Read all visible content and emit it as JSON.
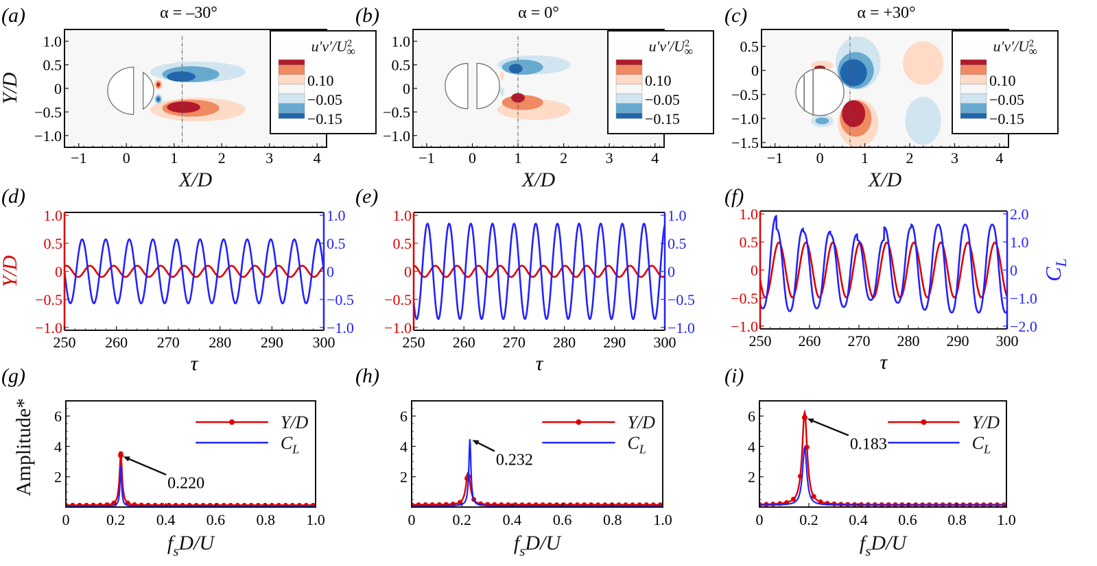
{
  "figure": {
    "description": "Flow field Reynolds stress contours, time histories, and amplitude spectra for three attack angles"
  },
  "chart_data": [
    {
      "id": "a",
      "panel_label": "(a)",
      "type": "heatmap",
      "title": "α = –30°",
      "xlabel": "X/D",
      "ylabel": "Y/D",
      "xlim": [
        -1.3,
        4.2
      ],
      "ylim": [
        -1.25,
        1.25
      ],
      "xticks": [
        -1,
        0,
        1,
        2,
        3,
        4
      ],
      "xtick_labels": [
        "−1",
        "0",
        "1",
        "2",
        "3",
        "4"
      ],
      "yticks": [
        1.0,
        0.5,
        0,
        -0.5,
        -1.0
      ],
      "ytick_labels": [
        "1.0",
        "0.5",
        "0",
        "−0.5",
        "−1.0"
      ],
      "probe_line_x": 1.17,
      "colorbar": {
        "title": "u′v′/U∞²",
        "labels": [
          "0.10",
          "−0.05",
          "−0.15"
        ],
        "levels": [
          "#b2182b",
          "#ef8a62",
          "#fddbc7",
          "#f7f7f7",
          "#d1e5f0",
          "#67a9cf",
          "#2166ac"
        ]
      },
      "geometry": {
        "type": "semicircle+arc",
        "description": "front semicircle with downstream arc splitter"
      },
      "blobs": [
        {
          "cx": 1.5,
          "cy": 0.35,
          "rx": 1.0,
          "ry": 0.22,
          "level": -1,
          "sign": "neg"
        },
        {
          "cx": 1.35,
          "cy": 0.3,
          "rx": 0.6,
          "ry": 0.17,
          "level": -2,
          "sign": "neg"
        },
        {
          "cx": 1.15,
          "cy": 0.25,
          "rx": 0.3,
          "ry": 0.11,
          "level": -3,
          "sign": "neg"
        },
        {
          "cx": 1.5,
          "cy": -0.45,
          "rx": 1.0,
          "ry": 0.25,
          "level": 1,
          "sign": "pos"
        },
        {
          "cx": 1.35,
          "cy": -0.42,
          "rx": 0.6,
          "ry": 0.18,
          "level": 2,
          "sign": "pos"
        },
        {
          "cx": 1.2,
          "cy": -0.4,
          "rx": 0.35,
          "ry": 0.12,
          "level": 3,
          "sign": "pos"
        },
        {
          "cx": 0.67,
          "cy": 0.08,
          "rx": 0.09,
          "ry": 0.11,
          "level": 1,
          "sign": "pos"
        },
        {
          "cx": 0.67,
          "cy": 0.08,
          "rx": 0.06,
          "ry": 0.08,
          "level": 2,
          "sign": "pos"
        },
        {
          "cx": 0.67,
          "cy": 0.08,
          "rx": 0.03,
          "ry": 0.04,
          "level": 3,
          "sign": "pos"
        },
        {
          "cx": 0.67,
          "cy": -0.23,
          "rx": 0.09,
          "ry": 0.11,
          "level": -1,
          "sign": "neg"
        },
        {
          "cx": 0.67,
          "cy": -0.23,
          "rx": 0.06,
          "ry": 0.08,
          "level": -2,
          "sign": "neg"
        },
        {
          "cx": 0.67,
          "cy": -0.23,
          "rx": 0.03,
          "ry": 0.04,
          "level": -3,
          "sign": "neg"
        }
      ]
    },
    {
      "id": "b",
      "panel_label": "(b)",
      "type": "heatmap",
      "title": "α = 0°",
      "xlabel": "X/D",
      "ylabel": "",
      "xlim": [
        -1.3,
        4.2
      ],
      "ylim": [
        -1.25,
        1.25
      ],
      "xticks": [
        -1,
        0,
        1,
        2,
        3,
        4
      ],
      "xtick_labels": [
        "−1",
        "0",
        "1",
        "2",
        "3",
        "4"
      ],
      "yticks": [
        1.0,
        0.5,
        0,
        -0.5,
        -1.0
      ],
      "ytick_labels": [
        "1.0",
        "0.5",
        "0",
        "−0.5",
        "−1.0"
      ],
      "probe_line_x": 1.0,
      "colorbar": {
        "title": "u′v′/U∞²",
        "labels": [
          "0.10",
          "−0.05",
          "−0.15"
        ],
        "levels": [
          "#b2182b",
          "#ef8a62",
          "#fddbc7",
          "#f7f7f7",
          "#d1e5f0",
          "#67a9cf",
          "#2166ac"
        ]
      },
      "geometry": {
        "type": "split-circle",
        "description": "two facing semicircles with gap"
      },
      "blobs": [
        {
          "cx": 1.35,
          "cy": 0.5,
          "rx": 0.8,
          "ry": 0.2,
          "level": -1,
          "sign": "neg"
        },
        {
          "cx": 1.1,
          "cy": 0.45,
          "rx": 0.45,
          "ry": 0.16,
          "level": -2,
          "sign": "neg"
        },
        {
          "cx": 0.95,
          "cy": 0.42,
          "rx": 0.15,
          "ry": 0.1,
          "level": -3,
          "sign": "neg"
        },
        {
          "cx": 1.35,
          "cy": -0.45,
          "rx": 0.8,
          "ry": 0.22,
          "level": 1,
          "sign": "pos"
        },
        {
          "cx": 1.1,
          "cy": -0.3,
          "rx": 0.45,
          "ry": 0.16,
          "level": 2,
          "sign": "pos"
        },
        {
          "cx": 1.0,
          "cy": -0.2,
          "rx": 0.15,
          "ry": 0.1,
          "level": 3,
          "sign": "pos"
        },
        {
          "cx": 0.65,
          "cy": 0.27,
          "rx": 0.05,
          "ry": 0.09,
          "level": 1,
          "sign": "pos"
        },
        {
          "cx": 0.65,
          "cy": -0.07,
          "rx": 0.05,
          "ry": 0.09,
          "level": -1,
          "sign": "neg"
        }
      ]
    },
    {
      "id": "c",
      "panel_label": "(c)",
      "type": "heatmap",
      "title": "α = +30°",
      "xlabel": "X/D",
      "ylabel": "",
      "xlim": [
        -1.3,
        4.2
      ],
      "ylim": [
        -1.6,
        0.85
      ],
      "xticks": [
        -1,
        0,
        1,
        2,
        3,
        4
      ],
      "xtick_labels": [
        "−1",
        "0",
        "1",
        "2",
        "3",
        "4"
      ],
      "yticks": [
        0.5,
        0,
        -0.5,
        -1.0,
        -1.5
      ],
      "ytick_labels": [
        "0.5",
        "0",
        "−0.5",
        "−1.0",
        "−1.5"
      ],
      "probe_line_x": 0.67,
      "colorbar": {
        "title": "u′v′/U∞²",
        "labels": [
          "0.10",
          "−0.05",
          "−0.15"
        ],
        "levels": [
          "#b2182b",
          "#ef8a62",
          "#fddbc7",
          "#f7f7f7",
          "#d1e5f0",
          "#67a9cf",
          "#2166ac"
        ]
      },
      "geometry": {
        "type": "circle-with-chords",
        "description": "circle with two vertical chords, centered near (0,-0.45)"
      },
      "blobs": [
        {
          "cx": 0.85,
          "cy": 0.15,
          "rx": 0.5,
          "ry": 0.55,
          "level": -1,
          "sign": "neg"
        },
        {
          "cx": 0.8,
          "cy": 0.0,
          "rx": 0.4,
          "ry": 0.38,
          "level": -2,
          "sign": "neg"
        },
        {
          "cx": 0.75,
          "cy": -0.05,
          "rx": 0.3,
          "ry": 0.28,
          "level": -3,
          "sign": "neg"
        },
        {
          "cx": 0.85,
          "cy": -1.1,
          "rx": 0.45,
          "ry": 0.5,
          "level": 1,
          "sign": "pos"
        },
        {
          "cx": 0.8,
          "cy": -1.0,
          "rx": 0.35,
          "ry": 0.38,
          "level": 2,
          "sign": "pos"
        },
        {
          "cx": 0.75,
          "cy": -0.9,
          "rx": 0.26,
          "ry": 0.28,
          "level": 3,
          "sign": "pos"
        },
        {
          "cx": 2.3,
          "cy": 0.15,
          "rx": 0.45,
          "ry": 0.45,
          "level": 1,
          "sign": "pos"
        },
        {
          "cx": 2.3,
          "cy": -1.05,
          "rx": 0.4,
          "ry": 0.5,
          "level": -1,
          "sign": "neg"
        },
        {
          "cx": 0.05,
          "cy": 0.1,
          "rx": 0.25,
          "ry": 0.1,
          "level": 1,
          "sign": "pos"
        },
        {
          "cx": 0.0,
          "cy": 0.05,
          "rx": 0.12,
          "ry": 0.05,
          "level": 3,
          "sign": "pos"
        },
        {
          "cx": 0.05,
          "cy": -1.05,
          "rx": 0.25,
          "ry": 0.13,
          "level": -1,
          "sign": "neg"
        },
        {
          "cx": 0.05,
          "cy": -1.05,
          "rx": 0.15,
          "ry": 0.07,
          "level": -2,
          "sign": "neg"
        }
      ]
    },
    {
      "id": "d",
      "panel_label": "(d)",
      "type": "line",
      "xlabel": "τ",
      "ylabel_left": "Y/D",
      "ylabel_right": "",
      "xlim": [
        250,
        300
      ],
      "xticks": [
        250,
        260,
        270,
        280,
        290,
        300
      ],
      "ylim_left": [
        -1.05,
        1.05
      ],
      "yticks_left": [
        1.0,
        0.5,
        0,
        -0.5,
        -1.0
      ],
      "ytick_labels_left": [
        "1.0",
        "0.5",
        "0",
        "−0.5",
        "−1.0"
      ],
      "ylim_right": [
        -1.05,
        1.05
      ],
      "yticks_right": [
        1.0,
        0.5,
        0,
        -0.5,
        -1.0
      ],
      "ytick_labels_right": [
        "1.0",
        "0.5",
        "0",
        "−0.5",
        "−1.0"
      ],
      "series": [
        {
          "name": "Y/D",
          "axis": "left",
          "color": "#dd0000",
          "amplitude": 0.1,
          "frequency": 0.22,
          "phase_deg": 60
        },
        {
          "name": "C_L",
          "axis": "right",
          "color": "#2222ff",
          "amplitude": 0.57,
          "frequency": 0.22,
          "phase_deg": 180
        }
      ]
    },
    {
      "id": "e",
      "panel_label": "(e)",
      "type": "line",
      "xlabel": "τ",
      "ylabel_left": "",
      "ylabel_right": "",
      "xlim": [
        250,
        300
      ],
      "xticks": [
        250,
        260,
        270,
        280,
        290,
        300
      ],
      "ylim_left": [
        -1.05,
        1.05
      ],
      "yticks_left": [
        1.0,
        0.5,
        0,
        -0.5,
        -1.0
      ],
      "ytick_labels_left": [
        "1.0",
        "0.5",
        "0",
        "−0.5",
        "−1.0"
      ],
      "ylim_right": [
        -1.05,
        1.05
      ],
      "yticks_right": [
        1.0,
        0.5,
        0,
        -0.5,
        -1.0
      ],
      "ytick_labels_right": [
        "1.0",
        "0.5",
        "0",
        "−0.5",
        "−1.0"
      ],
      "series": [
        {
          "name": "Y/D",
          "axis": "left",
          "color": "#dd0000",
          "amplitude": 0.1,
          "frequency": 0.232,
          "phase_deg": 90
        },
        {
          "name": "C_L",
          "axis": "right",
          "color": "#2222ff",
          "amplitude": 0.85,
          "frequency": 0.232,
          "phase_deg": 220
        }
      ]
    },
    {
      "id": "f",
      "panel_label": "(f)",
      "type": "line",
      "xlabel": "τ",
      "ylabel_left": "",
      "ylabel_right": "C_L",
      "xlim": [
        250,
        300
      ],
      "xticks": [
        250,
        260,
        270,
        280,
        290,
        300
      ],
      "ylim_left": [
        -1.05,
        1.05
      ],
      "yticks_left": [
        1.0,
        0.5,
        0,
        -0.5,
        -1.0
      ],
      "ytick_labels_left": [
        "1.0",
        "0.5",
        "0",
        "−0.5",
        "−1.0"
      ],
      "ylim_right": [
        -2.1,
        2.1
      ],
      "yticks_right": [
        2.0,
        1.0,
        0,
        -1.0,
        -2.0
      ],
      "ytick_labels_right": [
        "2.0",
        "1.0",
        "0",
        "−1.0",
        "−2.0"
      ],
      "series": [
        {
          "name": "Y/D",
          "axis": "left",
          "color": "#dd0000",
          "amplitude": 0.49,
          "frequency": 0.183,
          "phase_deg": 200
        },
        {
          "name": "C_L",
          "axis": "right",
          "color": "#2222ff",
          "amplitude": 1.5,
          "frequency": 0.183,
          "phase_deg": 235,
          "peak_values": [
            1.75,
            2.0,
            1.55,
            1.45,
            1.35,
            1.15,
            1.6,
            1.7,
            1.7
          ],
          "trough_values": [
            -1.45,
            -1.45,
            -1.55,
            -1.45,
            -1.4,
            -1.15,
            -1.25,
            -1.5,
            -1.6,
            -1.6
          ]
        }
      ]
    },
    {
      "id": "g",
      "panel_label": "(g)",
      "type": "line",
      "xlabel": "f_s D/U",
      "ylabel": "Amplitude*",
      "xlim": [
        0,
        1.0
      ],
      "xticks": [
        0,
        0.2,
        0.4,
        0.6,
        0.8,
        1.0
      ],
      "xtick_labels": [
        "0",
        "0.2",
        "0.4",
        "0.6",
        "0.8",
        "1.0"
      ],
      "ylim": [
        0,
        7
      ],
      "yticks": [
        2,
        4,
        6
      ],
      "ytick_labels": [
        "2",
        "4",
        "6"
      ],
      "annotation": {
        "text": "0.220",
        "x": 0.22,
        "y": 3.4
      },
      "legend": [
        {
          "name": "Y/D",
          "color": "#dd0000",
          "marker": true
        },
        {
          "name": "C_L",
          "color": "#2222ff",
          "marker": false
        }
      ],
      "legend_position": "top-right",
      "series": [
        {
          "name": "Y/D",
          "color": "#dd0000",
          "peak_x": 0.22,
          "peak_y": 3.4,
          "baseline": 0.12,
          "width": 0.006,
          "shoulder": 0.3
        },
        {
          "name": "C_L",
          "color": "#2222ff",
          "peak_x": 0.22,
          "peak_y": 2.7,
          "baseline": 0.06,
          "width": 0.004,
          "shoulder": 0.0
        }
      ]
    },
    {
      "id": "h",
      "panel_label": "(h)",
      "type": "line",
      "xlabel": "f_s D/U",
      "ylabel": "",
      "xlim": [
        0,
        1.0
      ],
      "xticks": [
        0,
        0.2,
        0.4,
        0.6,
        0.8,
        1.0
      ],
      "xtick_labels": [
        "0",
        "0.2",
        "0.4",
        "0.6",
        "0.8",
        "1.0"
      ],
      "ylim": [
        0,
        7
      ],
      "yticks": [
        2,
        4,
        6
      ],
      "ytick_labels": [
        "2",
        "4",
        "6"
      ],
      "annotation": {
        "text": "0.232",
        "x": 0.232,
        "y": 4.5
      },
      "legend": [
        {
          "name": "Y/D",
          "color": "#dd0000",
          "marker": true
        },
        {
          "name": "C_L",
          "color": "#2222ff",
          "marker": false
        }
      ],
      "legend_position": "top-right",
      "series": [
        {
          "name": "Y/D",
          "color": "#dd0000",
          "peak_x": 0.225,
          "peak_y": 2.0,
          "baseline": 0.15,
          "width": 0.01,
          "shoulder": 0.7
        },
        {
          "name": "C_L",
          "color": "#2222ff",
          "peak_x": 0.232,
          "peak_y": 4.5,
          "baseline": 0.08,
          "width": 0.005,
          "shoulder": 0.0
        }
      ]
    },
    {
      "id": "i",
      "panel_label": "(i)",
      "type": "line",
      "xlabel": "f_s D/U",
      "ylabel": "",
      "xlim": [
        0,
        1.0
      ],
      "xticks": [
        0,
        0.2,
        0.4,
        0.6,
        0.8,
        1.0
      ],
      "xtick_labels": [
        "0",
        "0.2",
        "0.4",
        "0.6",
        "0.8",
        "1.0"
      ],
      "ylim": [
        0,
        7
      ],
      "yticks": [
        2,
        4,
        6
      ],
      "ytick_labels": [
        "2",
        "4",
        "6"
      ],
      "annotation": {
        "text": "0.183",
        "x": 0.183,
        "y": 5.9
      },
      "legend": [
        {
          "name": "Y/D",
          "color": "#dd0000",
          "marker": true
        },
        {
          "name": "C_L",
          "color": "#2222ff",
          "marker": false
        }
      ],
      "legend_position": "top-right",
      "series": [
        {
          "name": "Y/D",
          "color": "#dd0000",
          "peak_x": 0.183,
          "peak_y": 5.9,
          "baseline": 0.15,
          "width": 0.012,
          "shoulder": 0.9
        },
        {
          "name": "C_L",
          "color": "#2222ff",
          "peak_x": 0.183,
          "peak_y": 3.7,
          "baseline": 0.12,
          "width": 0.01,
          "shoulder": 0.6
        }
      ]
    }
  ]
}
